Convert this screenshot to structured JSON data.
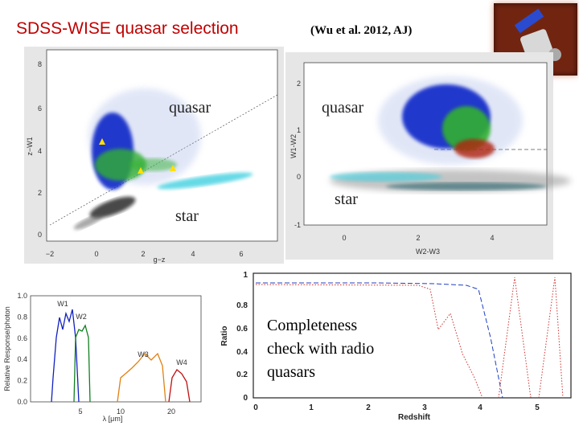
{
  "header": {
    "title": "SDSS-WISE quasar selection",
    "citation": "(Wu et al. 2012, AJ)"
  },
  "panels": [
    {
      "yticks": [
        "0",
        "2",
        "4",
        "6",
        "8"
      ],
      "xticks": [
        "−2",
        "0",
        "2",
        "4",
        "6"
      ],
      "xlabel": "g−z",
      "ylabel": "z−W1",
      "annotations": [
        "quasar",
        "star"
      ]
    },
    {
      "yticks": [
        "-1",
        "0",
        "1",
        "2"
      ],
      "xticks": [
        "0",
        "2",
        "4"
      ],
      "xlabel": "W2-W3",
      "ylabel": "W1-W2",
      "annotations": [
        "quasar",
        "star"
      ]
    },
    {
      "yticks": [
        "0.0",
        "0.2",
        "0.4",
        "0.6",
        "0.8",
        "1.0"
      ],
      "xticks": [
        "5",
        "10",
        "20"
      ],
      "xlabel": "λ [μm]",
      "ylabel": "Relative Response/photon",
      "bands": [
        "W1",
        "W2",
        "W3",
        "W4"
      ]
    },
    {
      "yticks": [
        "0",
        "0.2",
        "0.4",
        "0.6",
        "0.8",
        "1"
      ],
      "xticks": [
        "0",
        "1",
        "2",
        "3",
        "4",
        "5"
      ],
      "xlabel": "Redshift",
      "ylabel": "Ratio",
      "annotations": [
        "Completeness check with radio quasars"
      ]
    }
  ]
}
